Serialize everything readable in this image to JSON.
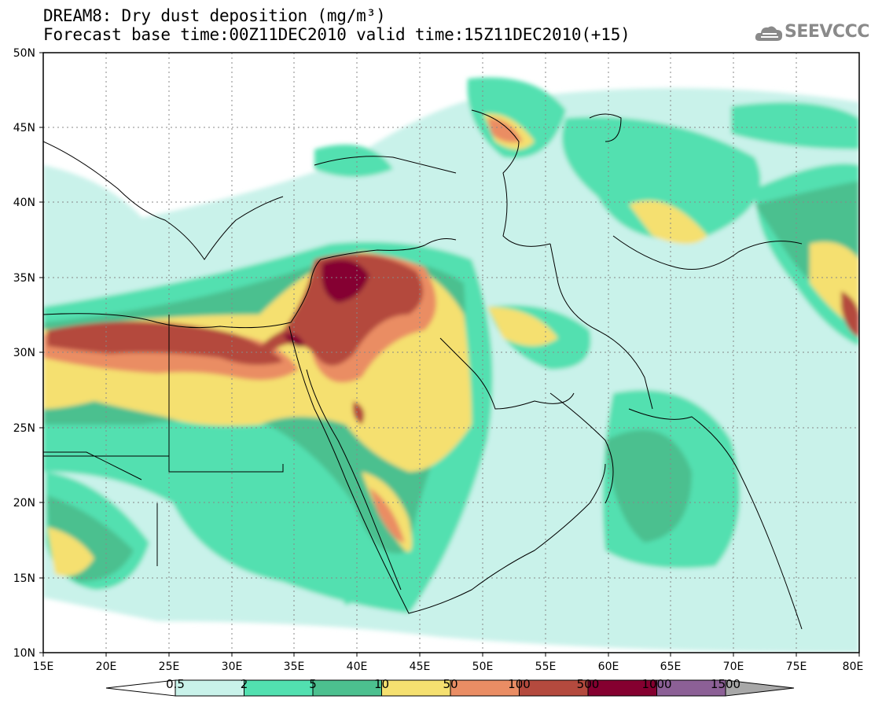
{
  "title": {
    "line1": "DREAM8: Dry dust deposition (mg/m³)",
    "line2": "Forecast base time:00Z11DEC2010 valid time:15Z11DEC2010(+15)"
  },
  "logo": {
    "text": "SEEVCCC",
    "icon": "cloud-icon"
  },
  "axes": {
    "lat_labels": [
      "50N",
      "45N",
      "40N",
      "35N",
      "30N",
      "25N",
      "20N",
      "15N",
      "10N"
    ],
    "lon_labels": [
      "15E",
      "20E",
      "25E",
      "30E",
      "35E",
      "40E",
      "45E",
      "50E",
      "55E",
      "60E",
      "65E",
      "70E",
      "75E",
      "80E"
    ]
  },
  "colorbar": {
    "labels": [
      "0.5",
      "2",
      "5",
      "10",
      "50",
      "100",
      "500",
      "1000",
      "1500"
    ],
    "colors": [
      "#ffffff",
      "#c9f2ea",
      "#52e0b0",
      "#4cc08f",
      "#f5e070",
      "#ea8d64",
      "#b44a3e",
      "#850030",
      "#8c6096",
      "#a8a8a8"
    ]
  }
}
